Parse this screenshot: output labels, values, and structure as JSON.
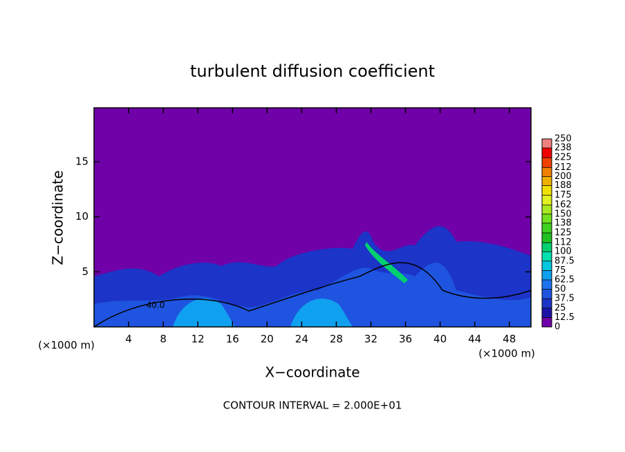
{
  "chart_data": {
    "type": "contour",
    "title": "turbulent diffusion coefficient",
    "xlabel": "X−coordinate",
    "ylabel": "Z−coordinate",
    "x_unit_left": "(×1000 m)",
    "x_unit_right": "(×1000 m)",
    "footer": "CONTOUR INTERVAL = 2.000E+01",
    "contour_label": "40.0",
    "xlim": [
      0,
      50.5
    ],
    "xticks": [
      4,
      8,
      12,
      16,
      20,
      24,
      28,
      32,
      36,
      40,
      44,
      48
    ],
    "ylim": [
      0,
      19.9
    ],
    "yticks": [
      5,
      10,
      15
    ],
    "colorbar": {
      "levels": [
        0,
        12.5,
        25,
        37.5,
        50,
        62.5,
        75,
        87.5,
        100,
        112,
        125,
        138,
        150,
        162,
        175,
        188,
        200,
        212,
        225,
        238,
        250
      ],
      "colors": [
        "#7000a8",
        "#1c14a8",
        "#1c34c8",
        "#1e54e0",
        "#1e74f0",
        "#10a0f0",
        "#00c8e0",
        "#00e0b0",
        "#00d070",
        "#20c020",
        "#40d020",
        "#70e020",
        "#a8e820",
        "#e0f020",
        "#f0e000",
        "#f0b000",
        "#f08000",
        "#f04000",
        "#f00000",
        "#f08080"
      ]
    }
  }
}
